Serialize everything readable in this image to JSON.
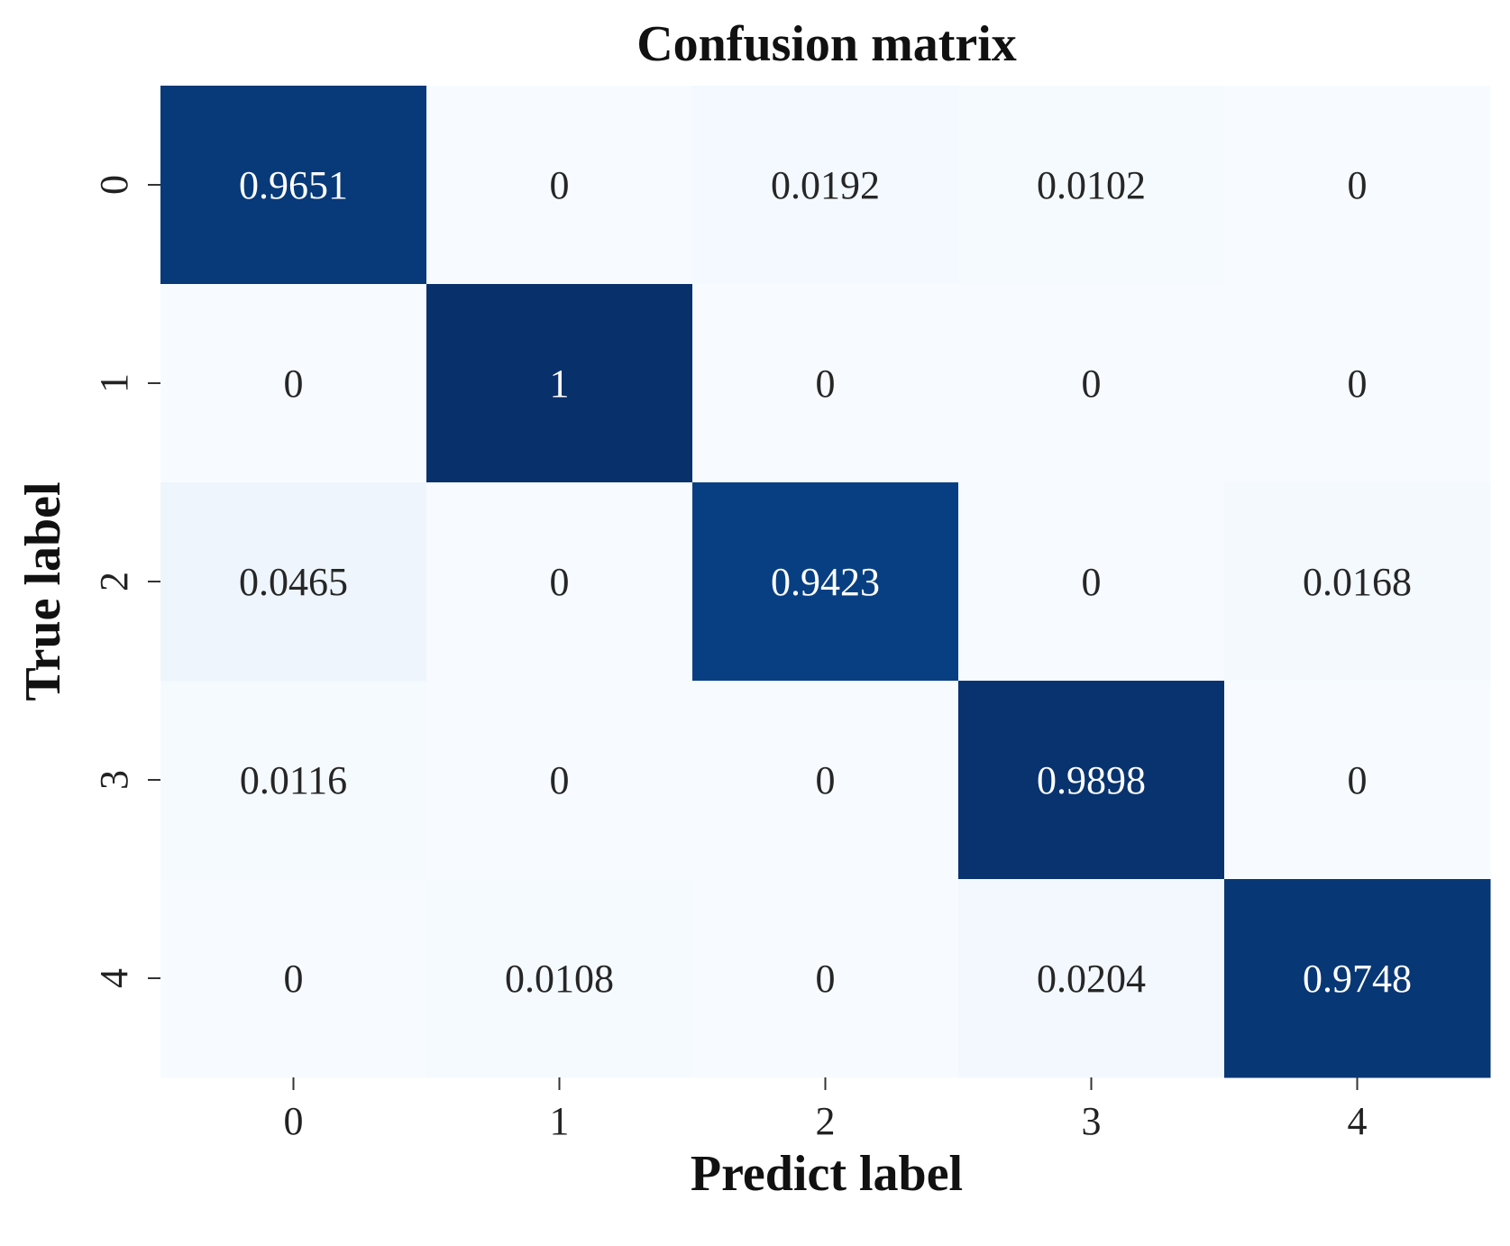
{
  "chart_data": {
    "type": "heatmap",
    "title": "Confusion matrix",
    "xlabel": "Predict label",
    "ylabel": "True label",
    "x_categories": [
      "0",
      "1",
      "2",
      "3",
      "4"
    ],
    "y_categories": [
      "0",
      "1",
      "2",
      "3",
      "4"
    ],
    "values": [
      [
        0.9651,
        0,
        0.0192,
        0.0102,
        0
      ],
      [
        0,
        1,
        0,
        0,
        0
      ],
      [
        0.0465,
        0,
        0.9423,
        0,
        0.0168
      ],
      [
        0.0116,
        0,
        0,
        0.9898,
        0
      ],
      [
        0,
        0.0108,
        0,
        0.0204,
        0.9748
      ]
    ],
    "value_labels": [
      [
        "0.9651",
        "0",
        "0.0192",
        "0.0102",
        "0"
      ],
      [
        "0",
        "1",
        "0",
        "0",
        "0"
      ],
      [
        "0.0465",
        "0",
        "0.9423",
        "0",
        "0.0168"
      ],
      [
        "0.0116",
        "0",
        "0",
        "0.9898",
        "0"
      ],
      [
        "0",
        "0.0108",
        "0",
        "0.0204",
        "0.9748"
      ]
    ],
    "colormap": "Blues",
    "color_low": "#f7fbff",
    "color_high": "#08306b",
    "colorbar": false,
    "grid": false
  }
}
